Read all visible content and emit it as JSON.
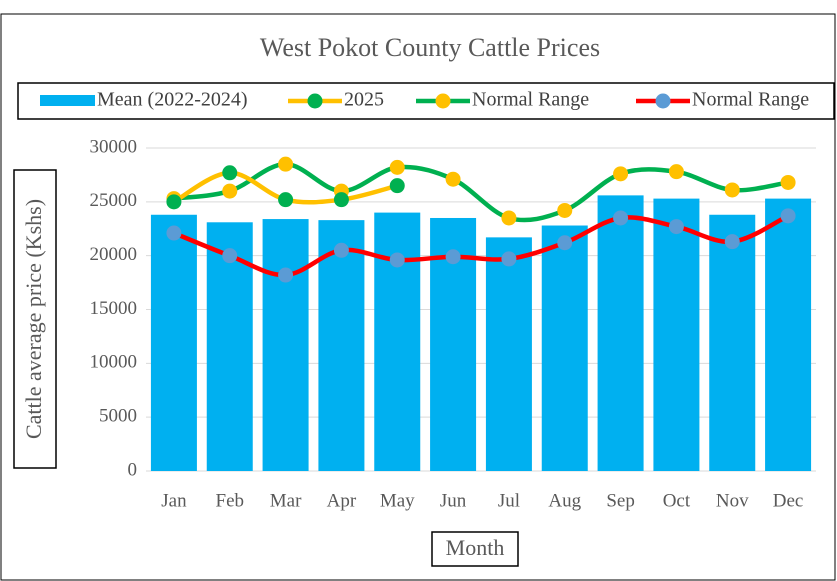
{
  "chart_data": {
    "type": "bar_line",
    "title": "West Pokot County Cattle Prices",
    "x_label": "Month",
    "y_label": "Cattle average price (Kshs)",
    "categories": [
      "Jan",
      "Feb",
      "Mar",
      "Apr",
      "May",
      "Jun",
      "Jul",
      "Aug",
      "Sep",
      "Oct",
      "Nov",
      "Dec"
    ],
    "series": [
      {
        "name": "Mean (2022-2024)",
        "kind": "bar",
        "color": "#00b0f0",
        "values": [
          23800,
          23100,
          23400,
          23300,
          24000,
          23500,
          21700,
          22800,
          25600,
          25300,
          23800,
          25300
        ]
      },
      {
        "name": "2025",
        "kind": "line",
        "color": "#ffc000",
        "marker_color": "#00b050",
        "values": [
          25000,
          27700,
          25200,
          25200,
          26500,
          null,
          null,
          null,
          null,
          null,
          null,
          null
        ]
      },
      {
        "name": "Normal Range",
        "kind": "line",
        "color": "#00b050",
        "marker_color": "#ffc000",
        "values": [
          25300,
          26000,
          28500,
          26000,
          28200,
          27100,
          23500,
          24200,
          27600,
          27800,
          26100,
          26800
        ]
      },
      {
        "name": "Normal Range",
        "kind": "line",
        "color": "#ff0000",
        "marker_color": "#5b9bd5",
        "values": [
          22100,
          20000,
          18200,
          20500,
          19600,
          19900,
          19700,
          21200,
          23500,
          22700,
          21300,
          23700
        ]
      }
    ],
    "ylim": [
      0,
      30000
    ],
    "yticks": [
      0,
      5000,
      10000,
      15000,
      20000,
      25000,
      30000
    ],
    "grid": true,
    "legend": "top"
  }
}
